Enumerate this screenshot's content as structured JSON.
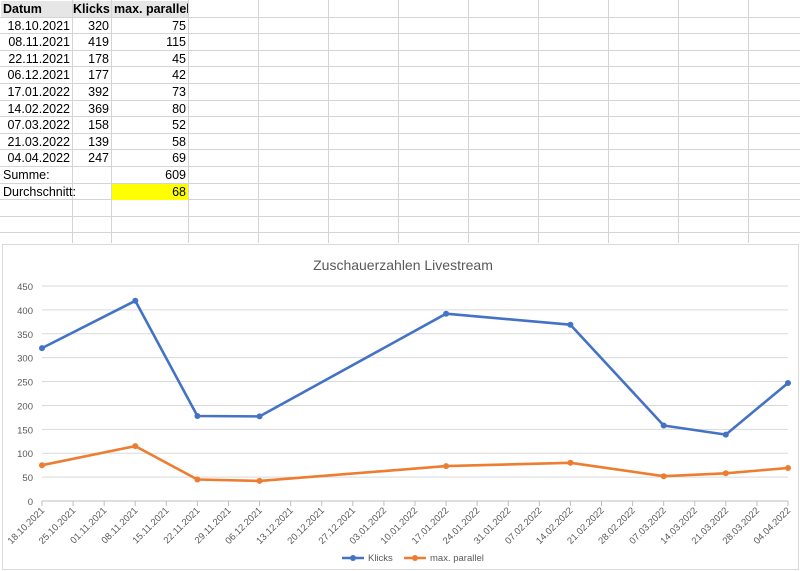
{
  "spreadsheet": {
    "headers": [
      "Datum",
      "Klicks",
      "max. parallel"
    ],
    "rows": [
      [
        "18.10.2021",
        "320",
        "75"
      ],
      [
        "08.11.2021",
        "419",
        "115"
      ],
      [
        "22.11.2021",
        "178",
        "45"
      ],
      [
        "06.12.2021",
        "177",
        "42"
      ],
      [
        "17.01.2022",
        "392",
        "73"
      ],
      [
        "14.02.2022",
        "369",
        "80"
      ],
      [
        "07.03.2022",
        "158",
        "52"
      ],
      [
        "21.03.2022",
        "139",
        "58"
      ],
      [
        "04.04.2022",
        "247",
        "69"
      ]
    ],
    "sum_label": "Summe:",
    "sum_value": "609",
    "avg_label": "Durchschnitt:",
    "avg_value": "68",
    "highlight_color": "#ffff00",
    "header_color": "#e7e6e6"
  },
  "chart_data": {
    "type": "line",
    "title": "Zuschauerzahlen Livestream",
    "xlabel": "",
    "ylabel": "",
    "ylim": [
      0,
      450
    ],
    "yticks": [
      0,
      50,
      100,
      150,
      200,
      250,
      300,
      350,
      400,
      450
    ],
    "xticks": [
      "18.10.2021",
      "25.10.2021",
      "01.11.2021",
      "08.11.2021",
      "15.11.2021",
      "22.11.2021",
      "29.11.2021",
      "06.12.2021",
      "13.12.2021",
      "20.12.2021",
      "27.12.2021",
      "03.01.2022",
      "10.01.2022",
      "17.01.2022",
      "24.01.2022",
      "31.01.2022",
      "07.02.2022",
      "14.02.2022",
      "21.02.2022",
      "28.02.2022",
      "07.03.2022",
      "14.03.2022",
      "21.03.2022",
      "28.03.2022",
      "04.04.2022"
    ],
    "x": [
      "18.10.2021",
      "08.11.2021",
      "22.11.2021",
      "06.12.2021",
      "17.01.2022",
      "14.02.2022",
      "07.03.2022",
      "21.03.2022",
      "04.04.2022"
    ],
    "series": [
      {
        "name": "Klicks",
        "color": "#4472c4",
        "values": [
          320,
          419,
          178,
          177,
          392,
          369,
          158,
          139,
          247
        ]
      },
      {
        "name": "max. parallel",
        "color": "#ed7d31",
        "values": [
          75,
          115,
          45,
          42,
          73,
          80,
          52,
          58,
          69
        ]
      }
    ],
    "grid": true,
    "legend": "bottom"
  }
}
